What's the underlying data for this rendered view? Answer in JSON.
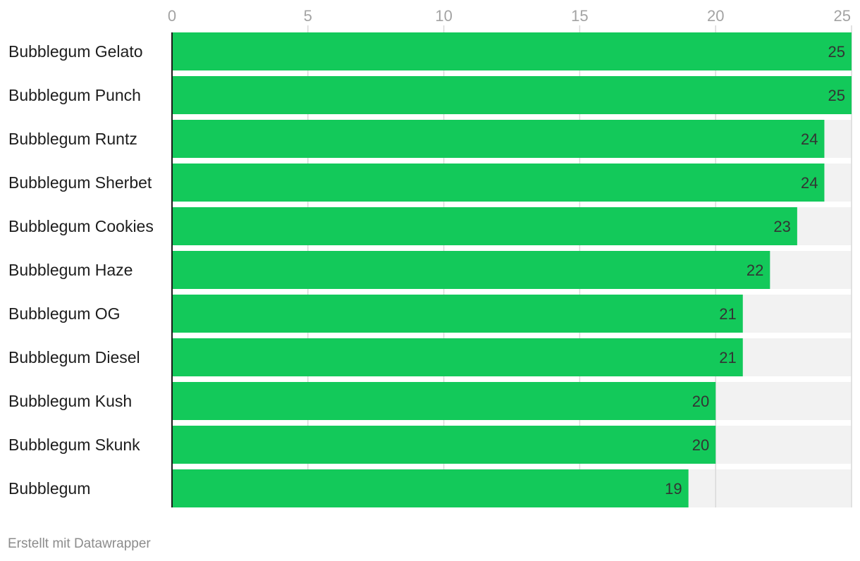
{
  "chart_data": {
    "type": "bar",
    "orientation": "horizontal",
    "title": "",
    "xlabel": "",
    "ylabel": "",
    "categories": [
      "Bubblegum Gelato",
      "Bubblegum Punch",
      "Bubblegum Runtz",
      "Bubblegum Sherbet",
      "Bubblegum Cookies",
      "Bubblegum Haze",
      "Bubblegum OG",
      "Bubblegum Diesel",
      "Bubblegum Kush",
      "Bubblegum Skunk",
      "Bubblegum"
    ],
    "values": [
      25,
      25,
      24,
      24,
      23,
      22,
      21,
      21,
      20,
      20,
      19
    ],
    "xlim": [
      0,
      25
    ],
    "xticks": [
      0,
      5,
      10,
      15,
      20,
      25
    ],
    "tick_labels": [
      "0",
      "5",
      "10",
      "15",
      "20",
      "25"
    ],
    "axis_position": "top",
    "grid": true,
    "data_labels": true,
    "legend": "none",
    "colors": {
      "bar": "#13c95a",
      "track": "#f2f2f2",
      "grid": "#d9d9d9",
      "axis": "#1a1a1a"
    }
  },
  "footer": {
    "credit": "Erstellt mit Datawrapper"
  }
}
